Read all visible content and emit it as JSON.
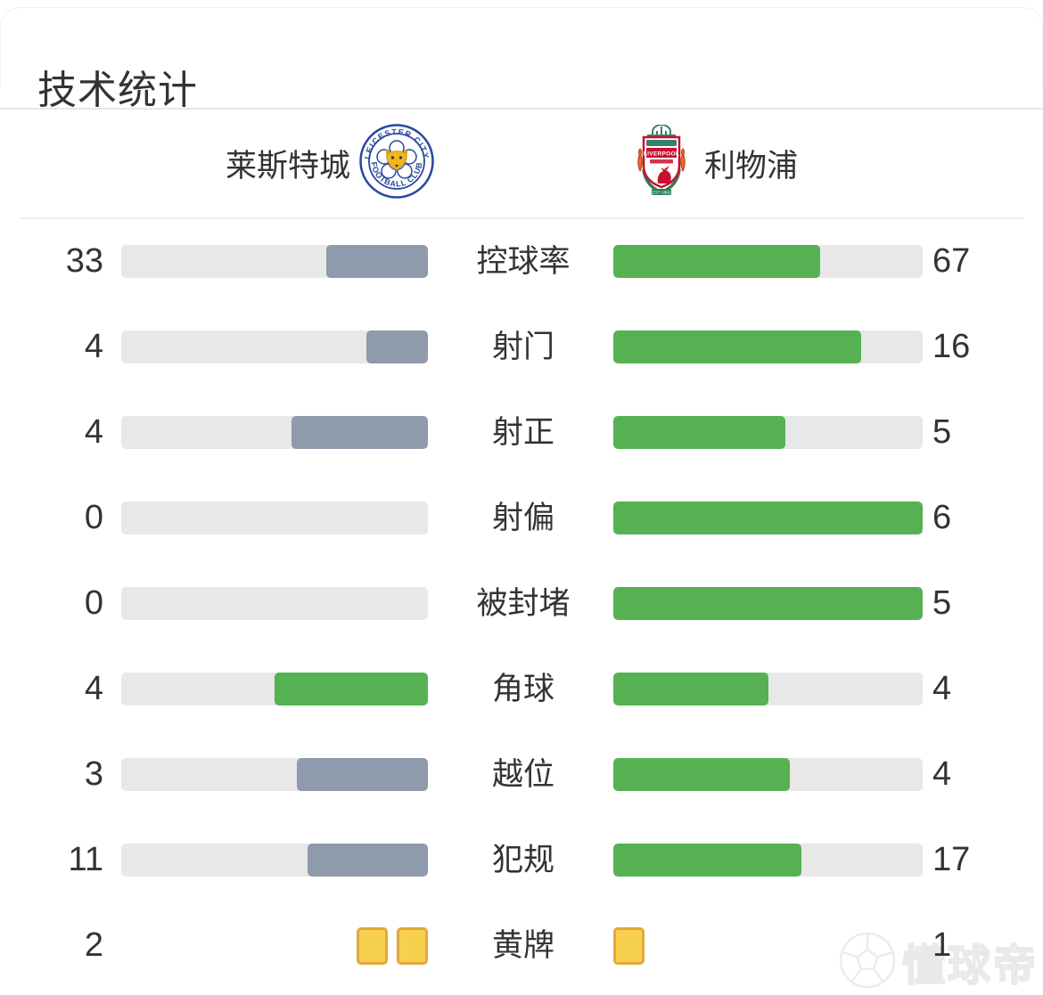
{
  "panel": {
    "title": "技术统计"
  },
  "teams": {
    "home": {
      "name": "莱斯特城",
      "crest_icon": "leicester-city-crest"
    },
    "away": {
      "name": "利物浦",
      "crest_icon": "liverpool-crest"
    }
  },
  "colors": {
    "track": "#e8e8e8",
    "home_bar": "#8f9aac",
    "away_bar": "#56b153",
    "leading_bar": "#56b153",
    "yellow_card_fill": "#f6d04e",
    "yellow_card_border": "#e3a83e",
    "text": "#333333"
  },
  "chart_data": {
    "type": "bar",
    "title": "技术统计",
    "categories": [
      "控球率",
      "射门",
      "射正",
      "射偏",
      "被封堵",
      "角球",
      "越位",
      "犯规",
      "黄牌"
    ],
    "series": [
      {
        "name": "莱斯特城",
        "values": [
          33,
          4,
          4,
          0,
          0,
          4,
          3,
          11,
          2
        ]
      },
      {
        "name": "利物浦",
        "values": [
          67,
          16,
          5,
          6,
          5,
          4,
          4,
          17,
          1
        ]
      }
    ],
    "legend_position": "top",
    "grid": false,
    "note": "paired horizontal bars, fill fraction = value / (home + away)"
  },
  "stats": [
    {
      "label": "控球率",
      "home": 33,
      "away": 67,
      "type": "bar"
    },
    {
      "label": "射门",
      "home": 4,
      "away": 16,
      "type": "bar"
    },
    {
      "label": "射正",
      "home": 4,
      "away": 5,
      "type": "bar"
    },
    {
      "label": "射偏",
      "home": 0,
      "away": 6,
      "type": "bar"
    },
    {
      "label": "被封堵",
      "home": 0,
      "away": 5,
      "type": "bar"
    },
    {
      "label": "角球",
      "home": 4,
      "away": 4,
      "type": "bar"
    },
    {
      "label": "越位",
      "home": 3,
      "away": 4,
      "type": "bar"
    },
    {
      "label": "犯规",
      "home": 11,
      "away": 17,
      "type": "bar"
    },
    {
      "label": "黄牌",
      "home": 2,
      "away": 1,
      "type": "cards"
    }
  ],
  "watermark": {
    "text": "懂球帝",
    "icon": "soccer-ball"
  }
}
